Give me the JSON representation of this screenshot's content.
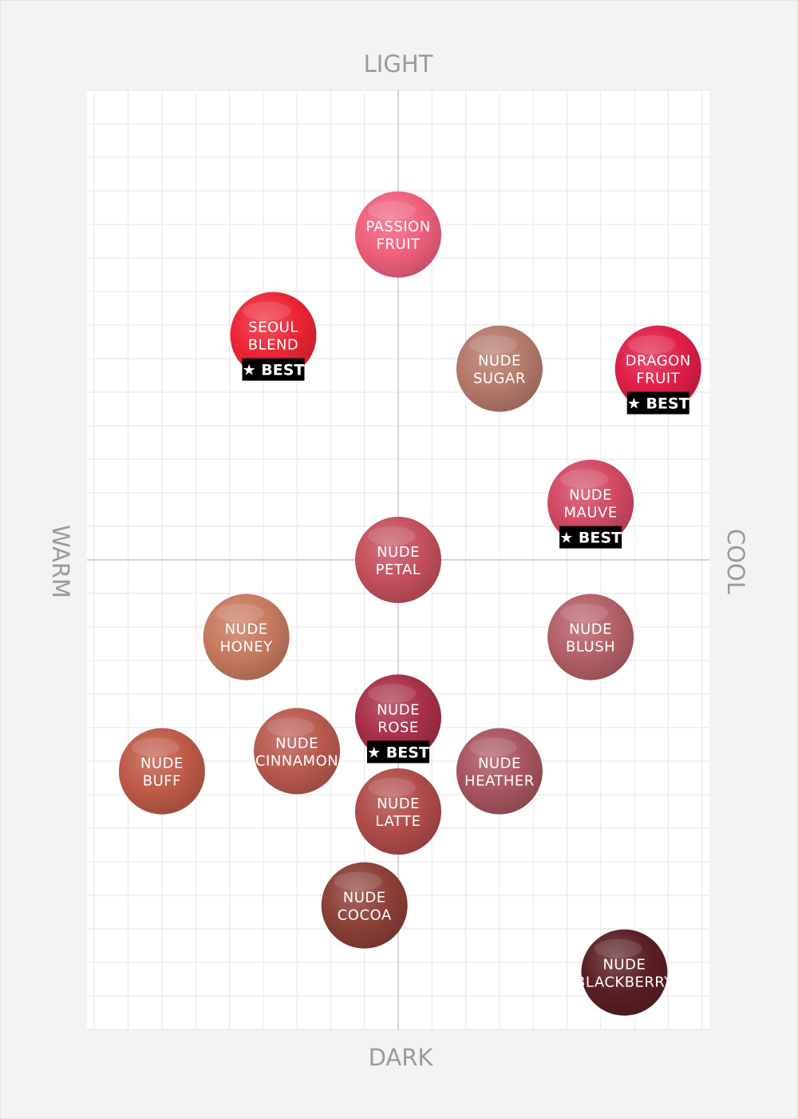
{
  "chart_data": {
    "type": "scatter",
    "title": "",
    "axes": {
      "top": "LIGHT",
      "bottom": "DARK",
      "left": "WARM",
      "right": "COOL"
    },
    "xlim": [
      -9,
      9
    ],
    "ylim": [
      -14,
      14
    ],
    "grid": true,
    "badge_text": "★ BEST",
    "points": [
      {
        "lines": [
          "PASSION",
          "FRUIT"
        ],
        "x": 0,
        "y": 9.7,
        "color": "#f0607c",
        "best": false
      },
      {
        "lines": [
          "SEOUL",
          "BLEND"
        ],
        "x": -3.7,
        "y": 6.7,
        "color": "#ec2535",
        "best": true
      },
      {
        "lines": [
          "NUDE",
          "SUGAR"
        ],
        "x": 3,
        "y": 5.7,
        "color": "#b47a6b",
        "best": false
      },
      {
        "lines": [
          "DRAGON",
          "FRUIT"
        ],
        "x": 7.7,
        "y": 5.7,
        "color": "#e01e48",
        "best": true
      },
      {
        "lines": [
          "NUDE",
          "MAUVE"
        ],
        "x": 5.7,
        "y": 1.7,
        "color": "#d14a64",
        "best": true
      },
      {
        "lines": [
          "NUDE",
          "PETAL"
        ],
        "x": 0,
        "y": 0,
        "color": "#c4505d",
        "best": false
      },
      {
        "lines": [
          "NUDE",
          "HONEY"
        ],
        "x": -4.5,
        "y": -2.3,
        "color": "#c77a5f",
        "best": false
      },
      {
        "lines": [
          "NUDE",
          "BLUSH"
        ],
        "x": 5.7,
        "y": -2.3,
        "color": "#b46068",
        "best": false
      },
      {
        "lines": [
          "NUDE",
          "ROSE"
        ],
        "x": 0,
        "y": -4.7,
        "color": "#a83048",
        "best": true
      },
      {
        "lines": [
          "NUDE",
          "CINNAMON"
        ],
        "x": -3,
        "y": -5.7,
        "color": "#b95a50",
        "best": false
      },
      {
        "lines": [
          "NUDE",
          "BUFF"
        ],
        "x": -7,
        "y": -6.3,
        "color": "#bf5a48",
        "best": false
      },
      {
        "lines": [
          "NUDE",
          "HEATHER"
        ],
        "x": 3,
        "y": -6.3,
        "color": "#a85560",
        "best": false
      },
      {
        "lines": [
          "NUDE",
          "LATTE"
        ],
        "x": 0,
        "y": -7.5,
        "color": "#b04c4a",
        "best": false
      },
      {
        "lines": [
          "NUDE",
          "COCOA"
        ],
        "x": -1,
        "y": -10.3,
        "color": "#8c4038",
        "best": false
      },
      {
        "lines": [
          "NUDE",
          "BLACKBERRY"
        ],
        "x": 6.7,
        "y": -12.3,
        "color": "#5a2024",
        "best": false
      }
    ]
  }
}
